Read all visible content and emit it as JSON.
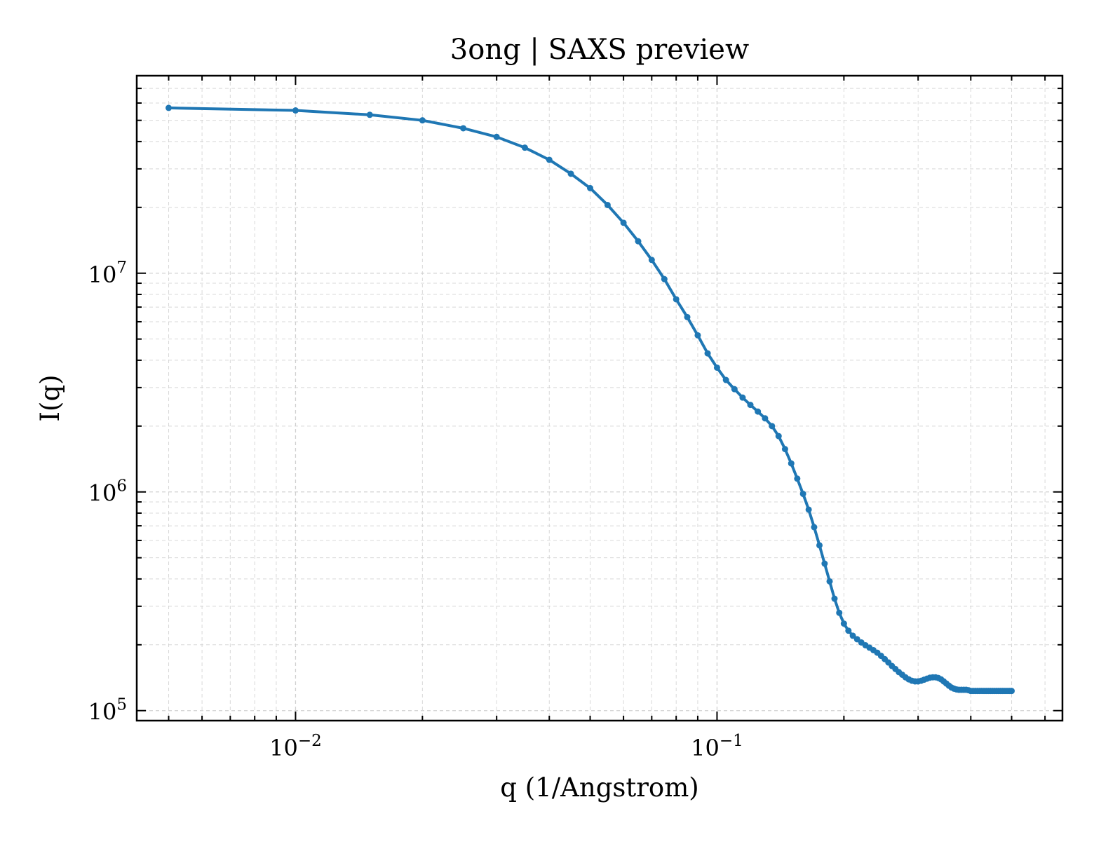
{
  "chart_data": {
    "type": "line",
    "title": "3ong | SAXS preview",
    "xlabel": "q (1/Angstrom)",
    "ylabel": "I(q)",
    "xscale": "log",
    "yscale": "log",
    "xlim": [
      0.0042,
      0.66
    ],
    "ylim": [
      90000,
      80000000
    ],
    "grid": true,
    "legend": "none",
    "x_ticks": [
      {
        "value": 0.01,
        "base": "10",
        "exp": "−2"
      },
      {
        "value": 0.1,
        "base": "10",
        "exp": "−1"
      }
    ],
    "y_ticks": [
      {
        "value": 100000,
        "base": "10",
        "exp": "5"
      },
      {
        "value": 1000000,
        "base": "10",
        "exp": "6"
      },
      {
        "value": 10000000,
        "base": "10",
        "exp": "7"
      }
    ],
    "series": [
      {
        "color": "#1f77b4",
        "marker": "circle",
        "x": [
          0.005,
          0.01,
          0.015,
          0.02,
          0.025,
          0.03,
          0.035,
          0.04,
          0.045,
          0.05,
          0.055,
          0.06,
          0.065,
          0.07,
          0.075,
          0.08,
          0.085,
          0.09,
          0.095,
          0.1,
          0.105,
          0.11,
          0.115,
          0.12,
          0.125,
          0.13,
          0.135,
          0.14,
          0.145,
          0.15,
          0.155,
          0.16,
          0.165,
          0.17,
          0.175,
          0.18,
          0.185,
          0.19,
          0.195,
          0.2,
          0.205,
          0.21,
          0.215,
          0.22,
          0.225,
          0.23,
          0.235,
          0.24,
          0.245,
          0.25,
          0.255,
          0.26,
          0.265,
          0.27,
          0.275,
          0.28,
          0.285,
          0.29,
          0.295,
          0.3,
          0.305,
          0.31,
          0.315,
          0.32,
          0.325,
          0.33,
          0.335,
          0.34,
          0.345,
          0.35,
          0.355,
          0.36,
          0.365,
          0.37,
          0.375,
          0.38,
          0.385,
          0.39,
          0.395,
          0.4,
          0.405,
          0.41,
          0.415,
          0.42,
          0.425,
          0.43,
          0.435,
          0.44,
          0.445,
          0.45,
          0.455,
          0.46,
          0.465,
          0.47,
          0.475,
          0.48,
          0.485,
          0.49,
          0.495,
          0.5
        ],
        "y": [
          57000000,
          55500000,
          53000000,
          50000000,
          46000000,
          42000000,
          37500000,
          33000000,
          28500000,
          24500000,
          20500000,
          17000000,
          14000000,
          11500000,
          9400000,
          7600000,
          6300000,
          5200000,
          4300000,
          3700000,
          3250000,
          2950000,
          2700000,
          2500000,
          2330000,
          2170000,
          2000000,
          1800000,
          1570000,
          1350000,
          1150000,
          980000,
          830000,
          690000,
          570000,
          470000,
          390000,
          325000,
          280000,
          250000,
          232000,
          220000,
          212000,
          205000,
          199000,
          194000,
          189000,
          184000,
          178000,
          172000,
          166000,
          160000,
          155000,
          150000,
          146000,
          142000,
          139000,
          137000,
          136000,
          136000,
          137000,
          138500,
          140000,
          141500,
          142000,
          142000,
          141000,
          139000,
          136000,
          133000,
          130000,
          127500,
          126000,
          125000,
          124500,
          124500,
          124500,
          124500,
          124000,
          123000,
          123000,
          123000,
          123000,
          123000,
          123000,
          123000,
          123000,
          123000,
          123000,
          123000,
          123000,
          123000,
          123000,
          123000,
          123000,
          123000,
          123000,
          123000,
          123000,
          123000
        ]
      }
    ]
  }
}
